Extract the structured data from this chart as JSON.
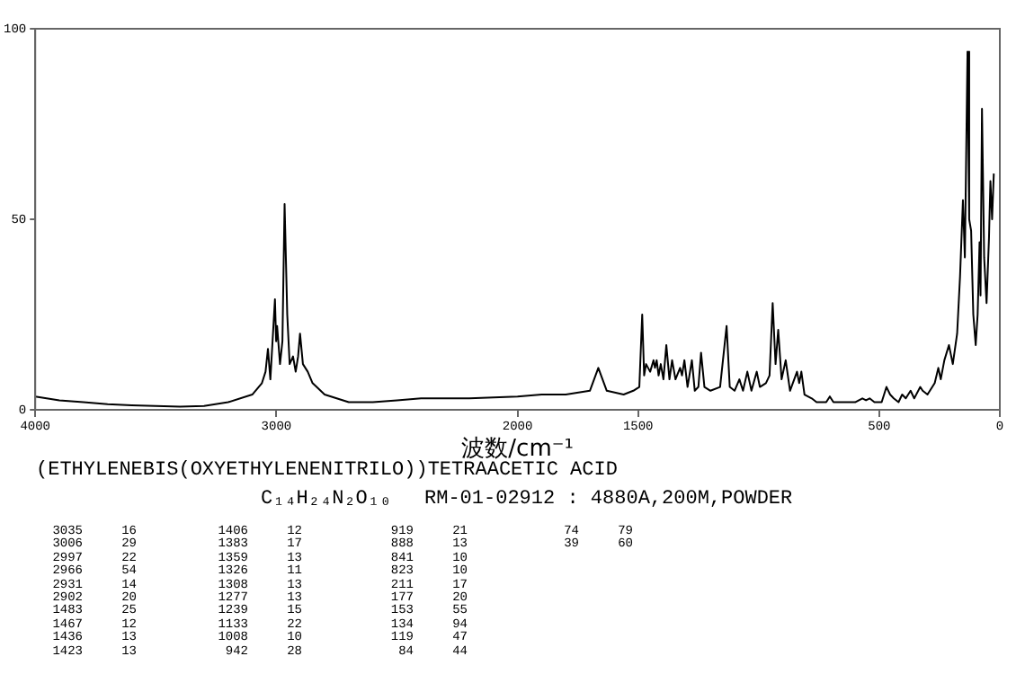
{
  "chart_data": {
    "type": "line",
    "title": "(ETHYLENEBIS(OXYETHYLENENITRILO))TETRAACETIC ACID",
    "xlabel": "波数/cm⁻¹",
    "xlim": [
      4000,
      0
    ],
    "xticks": [
      4000,
      3000,
      2000,
      1500,
      500,
      0
    ],
    "ylim": [
      0,
      100
    ],
    "yticks": [
      0,
      50,
      100
    ],
    "grid": false,
    "marker": "none",
    "line_style": "solid",
    "series": [
      {
        "color": "#000000",
        "x": [
          4000,
          3900,
          3800,
          3700,
          3600,
          3500,
          3400,
          3300,
          3200,
          3100,
          3060,
          3045,
          3035,
          3025,
          3006,
          3001,
          2997,
          2985,
          2975,
          2966,
          2955,
          2945,
          2931,
          2920,
          2910,
          2902,
          2890,
          2870,
          2850,
          2800,
          2750,
          2700,
          2600,
          2500,
          2400,
          2200,
          2000,
          1900,
          1800,
          1700,
          1665,
          1630,
          1560,
          1520,
          1495,
          1483,
          1475,
          1467,
          1450,
          1436,
          1430,
          1423,
          1415,
          1406,
          1395,
          1383,
          1370,
          1359,
          1345,
          1326,
          1318,
          1308,
          1295,
          1277,
          1265,
          1250,
          1239,
          1225,
          1200,
          1160,
          1133,
          1120,
          1100,
          1080,
          1065,
          1047,
          1030,
          1008,
          995,
          970,
          955,
          942,
          930,
          919,
          905,
          888,
          870,
          841,
          832,
          823,
          810,
          780,
          760,
          720,
          705,
          690,
          650,
          600,
          570,
          555,
          540,
          520,
          490,
          470,
          455,
          440,
          420,
          405,
          390,
          370,
          355,
          330,
          320,
          300,
          270,
          255,
          245,
          230,
          211,
          195,
          177,
          165,
          153,
          145,
          134,
          127,
          119,
          110,
          100,
          92,
          84,
          80,
          74,
          65,
          55,
          45,
          39,
          32,
          25
        ],
        "values": [
          3.5,
          2.5,
          2,
          1.5,
          1.2,
          1,
          0.8,
          1,
          2,
          4,
          7,
          10,
          16,
          8,
          29,
          18,
          22,
          12,
          18,
          54,
          25,
          12,
          14,
          10,
          14,
          20,
          12,
          10,
          7,
          4,
          3,
          2,
          2,
          2.5,
          3,
          3,
          3.5,
          4,
          4,
          5,
          11,
          5,
          4,
          5,
          6,
          25,
          9,
          12,
          10,
          13,
          11,
          13,
          9,
          12,
          8,
          17,
          8,
          13,
          8,
          11,
          9,
          13,
          6,
          13,
          5,
          6,
          15,
          6,
          5,
          6,
          22,
          6,
          5,
          8,
          5,
          10,
          5,
          10,
          6,
          7,
          9,
          28,
          12,
          21,
          8,
          13,
          5,
          10,
          7,
          10,
          4,
          3,
          2,
          2,
          3.5,
          2,
          2,
          2,
          3,
          2.5,
          3,
          2,
          2,
          6,
          4,
          3,
          2,
          4,
          3,
          5,
          3,
          6,
          5,
          4,
          7,
          11,
          8,
          13,
          17,
          12,
          20,
          35,
          55,
          40,
          94,
          50,
          47,
          25,
          17,
          25,
          44,
          30,
          79,
          40,
          28,
          45,
          60,
          50,
          62
        ]
      }
    ],
    "annotations": [
      "C₁₄H₂₄N₂O₁₀",
      "RM-01-02912 : 4880A,200M,POWDER",
      "3035 16",
      "3006 29",
      "2997 22",
      "2966 54",
      "2931 14",
      "2902 20",
      "1483 25",
      "1467 12",
      "1436 13",
      "1423 13",
      "1406 12",
      "1383 17",
      "1359 13",
      "1326 11",
      "1308 13",
      "1277 13",
      "1239 15",
      "1133 22",
      "1008 10",
      "942 28",
      "919 21",
      "888 13",
      "841 10",
      "823 10",
      "211 17",
      "177 20",
      "153 55",
      "134 94",
      "119 47",
      "84 44",
      "74 79",
      "39 60"
    ]
  }
}
